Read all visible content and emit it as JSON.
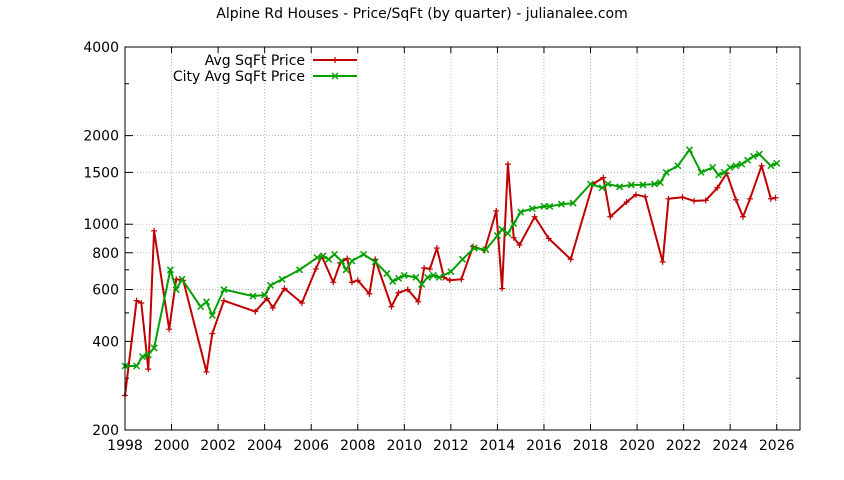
{
  "chart_data": {
    "type": "line",
    "title": "Alpine Rd Houses - Price/SqFt (by quarter) - julianalee.com",
    "xlabel": "",
    "ylabel": "",
    "y_scale": "log",
    "xlim": [
      1998,
      2027
    ],
    "ylim": [
      200,
      4000
    ],
    "grid": true,
    "legend_position": "top-left",
    "x_ticks": [
      1998,
      2000,
      2002,
      2004,
      2006,
      2008,
      2010,
      2012,
      2014,
      2016,
      2018,
      2020,
      2022,
      2024,
      2026
    ],
    "y_ticks": [
      200,
      400,
      600,
      800,
      1000,
      1500,
      2000,
      4000
    ],
    "x_tick_labels": [
      "1998",
      "2000",
      "2002",
      "2004",
      "2006",
      "2008",
      "2010",
      "2012",
      "2014",
      "2016",
      "2018",
      "2020",
      "2022",
      "2024",
      "2026"
    ],
    "y_tick_labels": [
      "200",
      "400",
      "600",
      "800",
      "1000",
      "1500",
      "2000",
      "4000"
    ],
    "series": [
      {
        "name": "Avg SqFt Price",
        "color": "#c00000",
        "marker": "plus",
        "points": [
          [
            1998.0,
            262
          ],
          [
            1998.5,
            550
          ],
          [
            1998.7,
            540
          ],
          [
            1999.0,
            322
          ],
          [
            1999.25,
            950
          ],
          [
            1999.9,
            440
          ],
          [
            2000.2,
            650
          ],
          [
            2000.5,
            645
          ],
          [
            2001.5,
            315
          ],
          [
            2001.75,
            425
          ],
          [
            2002.25,
            550
          ],
          [
            2003.6,
            505
          ],
          [
            2004.1,
            560
          ],
          [
            2004.35,
            520
          ],
          [
            2004.85,
            605
          ],
          [
            2005.6,
            540
          ],
          [
            2006.2,
            705
          ],
          [
            2006.45,
            780
          ],
          [
            2006.95,
            635
          ],
          [
            2007.25,
            740
          ],
          [
            2007.55,
            765
          ],
          [
            2007.75,
            635
          ],
          [
            2008.0,
            645
          ],
          [
            2008.5,
            580
          ],
          [
            2008.75,
            760
          ],
          [
            2009.45,
            525
          ],
          [
            2009.75,
            585
          ],
          [
            2010.15,
            600
          ],
          [
            2010.6,
            545
          ],
          [
            2010.85,
            710
          ],
          [
            2011.1,
            705
          ],
          [
            2011.4,
            830
          ],
          [
            2011.7,
            660
          ],
          [
            2011.95,
            645
          ],
          [
            2012.45,
            650
          ],
          [
            2012.95,
            840
          ],
          [
            2013.45,
            815
          ],
          [
            2013.95,
            1110
          ],
          [
            2014.2,
            605
          ],
          [
            2014.45,
            1600
          ],
          [
            2014.7,
            900
          ],
          [
            2014.95,
            850
          ],
          [
            2015.6,
            1060
          ],
          [
            2016.2,
            895
          ],
          [
            2017.15,
            760
          ],
          [
            2018.1,
            1370
          ],
          [
            2018.55,
            1440
          ],
          [
            2018.85,
            1060
          ],
          [
            2019.55,
            1190
          ],
          [
            2019.95,
            1260
          ],
          [
            2020.35,
            1240
          ],
          [
            2021.1,
            745
          ],
          [
            2021.35,
            1220
          ],
          [
            2021.95,
            1235
          ],
          [
            2022.45,
            1200
          ],
          [
            2022.95,
            1205
          ],
          [
            2023.45,
            1330
          ],
          [
            2023.85,
            1490
          ],
          [
            2024.25,
            1210
          ],
          [
            2024.55,
            1060
          ],
          [
            2024.85,
            1220
          ],
          [
            2025.35,
            1580
          ],
          [
            2025.75,
            1220
          ],
          [
            2025.95,
            1230
          ]
        ]
      },
      {
        "name": "City Avg SqFt Price",
        "color": "#00a000",
        "marker": "cross",
        "points": [
          [
            1998.0,
            330
          ],
          [
            1998.5,
            330
          ],
          [
            1998.75,
            355
          ],
          [
            1999.0,
            360
          ],
          [
            1999.25,
            380
          ],
          [
            1999.95,
            700
          ],
          [
            2000.2,
            600
          ],
          [
            2000.45,
            650
          ],
          [
            2001.25,
            525
          ],
          [
            2001.5,
            545
          ],
          [
            2001.75,
            490
          ],
          [
            2002.25,
            600
          ],
          [
            2003.5,
            570
          ],
          [
            2004.0,
            575
          ],
          [
            2004.25,
            620
          ],
          [
            2004.75,
            650
          ],
          [
            2005.5,
            700
          ],
          [
            2006.25,
            770
          ],
          [
            2006.5,
            780
          ],
          [
            2006.75,
            760
          ],
          [
            2007.0,
            790
          ],
          [
            2007.3,
            750
          ],
          [
            2007.5,
            700
          ],
          [
            2007.75,
            750
          ],
          [
            2008.25,
            790
          ],
          [
            2008.75,
            745
          ],
          [
            2009.25,
            680
          ],
          [
            2009.5,
            640
          ],
          [
            2009.75,
            655
          ],
          [
            2010.0,
            670
          ],
          [
            2010.5,
            660
          ],
          [
            2010.75,
            625
          ],
          [
            2011.0,
            660
          ],
          [
            2011.25,
            670
          ],
          [
            2011.5,
            660
          ],
          [
            2012.0,
            690
          ],
          [
            2012.5,
            760
          ],
          [
            2013.0,
            830
          ],
          [
            2013.5,
            820
          ],
          [
            2014.0,
            915
          ],
          [
            2014.2,
            960
          ],
          [
            2014.45,
            930
          ],
          [
            2014.7,
            1005
          ],
          [
            2015.0,
            1100
          ],
          [
            2015.5,
            1130
          ],
          [
            2016.0,
            1150
          ],
          [
            2016.25,
            1150
          ],
          [
            2016.75,
            1170
          ],
          [
            2017.25,
            1180
          ],
          [
            2018.0,
            1370
          ],
          [
            2018.5,
            1330
          ],
          [
            2018.75,
            1370
          ],
          [
            2019.25,
            1340
          ],
          [
            2019.75,
            1360
          ],
          [
            2020.25,
            1360
          ],
          [
            2020.75,
            1370
          ],
          [
            2021.0,
            1385
          ],
          [
            2021.25,
            1500
          ],
          [
            2021.75,
            1580
          ],
          [
            2022.25,
            1790
          ],
          [
            2022.75,
            1500
          ],
          [
            2023.25,
            1560
          ],
          [
            2023.5,
            1470
          ],
          [
            2023.75,
            1500
          ],
          [
            2024.0,
            1560
          ],
          [
            2024.25,
            1580
          ],
          [
            2024.5,
            1600
          ],
          [
            2024.75,
            1650
          ],
          [
            2025.0,
            1700
          ],
          [
            2025.25,
            1730
          ],
          [
            2025.75,
            1580
          ],
          [
            2026.0,
            1610
          ]
        ]
      }
    ]
  }
}
